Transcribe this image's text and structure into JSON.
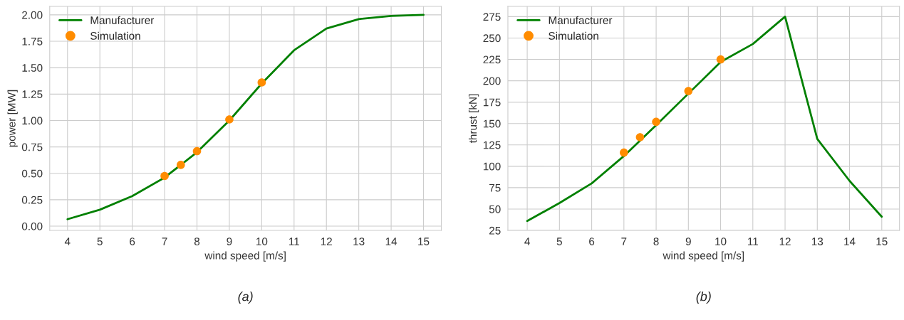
{
  "chart_data": [
    {
      "type": "line",
      "xlabel": "wind speed [m/s]",
      "ylabel": "power [MW]",
      "annotations": [
        "(a)"
      ],
      "xlim": [
        3.45,
        15.55
      ],
      "xticks": [
        4,
        5,
        6,
        7,
        8,
        9,
        10,
        11,
        12,
        13,
        14,
        15
      ],
      "ylim": [
        -0.04,
        2.08
      ],
      "yticks": [
        {
          "value": 0,
          "label": "0.00"
        },
        0.25,
        {
          "value": 0.5,
          "label": "0.50"
        },
        0.75,
        {
          "value": 1,
          "label": "1.00"
        },
        1.25,
        {
          "value": 1.5,
          "label": "1.50"
        },
        1.75,
        {
          "value": 2,
          "label": "2.00"
        }
      ],
      "grid": true,
      "legend": "top left",
      "series": [
        {
          "name": "Manufacturer",
          "color": "#008000",
          "marker": "none",
          "x": [
            4,
            5,
            6,
            7,
            8,
            9,
            10,
            11,
            12,
            13,
            14,
            15
          ],
          "values": [
            0.066,
            0.156,
            0.285,
            0.46,
            0.7,
            1.0,
            1.35,
            1.665,
            1.87,
            1.96,
            1.99,
            2.0
          ]
        },
        {
          "name": "Simulation",
          "type": "scatter",
          "color": "#ff8c00",
          "marker": "circle",
          "x": [
            7,
            7.5,
            8,
            9,
            10
          ],
          "values": [
            0.475,
            0.58,
            0.71,
            1.01,
            1.36
          ]
        }
      ]
    },
    {
      "type": "line",
      "xlabel": "wind speed [m/s]",
      "ylabel": "thrust [kN]",
      "annotations": [
        "(b)"
      ],
      "xlim": [
        3.4,
        15.55
      ],
      "xticks": [
        4,
        5,
        6,
        7,
        8,
        9,
        10,
        11,
        12,
        13,
        14,
        15
      ],
      "ylim": [
        25,
        287
      ],
      "yticks": [
        25,
        50,
        75,
        100,
        125,
        150,
        175,
        200,
        225,
        250,
        275
      ],
      "grid": true,
      "legend": "top left",
      "series": [
        {
          "name": "Manufacturer",
          "color": "#008000",
          "marker": "none",
          "x": [
            4,
            5,
            6,
            7,
            8,
            9,
            10,
            11,
            12,
            13,
            14,
            15
          ],
          "values": [
            36,
            57,
            80,
            112,
            148,
            185,
            222,
            243,
            275,
            132,
            83,
            41
          ]
        },
        {
          "name": "Simulation",
          "type": "scatter",
          "color": "#ff8c00",
          "marker": "circle",
          "x": [
            7,
            7.5,
            8,
            9,
            10
          ],
          "values": [
            116,
            134,
            152,
            188,
            225
          ]
        }
      ]
    }
  ]
}
